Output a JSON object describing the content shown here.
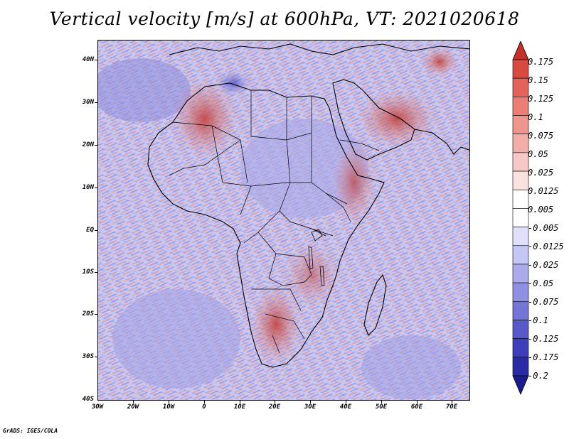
{
  "title": "Vertical velocity [m/s] at 600hPa, VT: 2021020618",
  "variable": "Vertical velocity",
  "units": "m/s",
  "level": "600hPa",
  "valid_time": "2021020618",
  "lat_ticks": [
    "40N",
    "30N",
    "20N",
    "10N",
    "EQ",
    "10S",
    "20S",
    "30S",
    "40S"
  ],
  "lon_ticks": [
    "30W",
    "20W",
    "10W",
    "0",
    "10E",
    "20E",
    "30E",
    "40E",
    "50E",
    "60E",
    "70E"
  ],
  "colorbar": {
    "levels": [
      "0.175",
      "0.15",
      "0.125",
      "0.1",
      "0.075",
      "0.05",
      "0.025",
      "0.0125",
      "0.005",
      "-0.005",
      "-0.0125",
      "-0.025",
      "-0.05",
      "-0.075",
      "-0.1",
      "-0.125",
      "-0.175",
      "-0.2"
    ],
    "colors": [
      "#c4302a",
      "#d8493f",
      "#e2635a",
      "#ea7d74",
      "#ee958e",
      "#f2afaa",
      "#f6c9c6",
      "#fae2e0",
      "#ffffff",
      "#ffffff",
      "#e0e0fa",
      "#c6c6f4",
      "#ababec",
      "#9090e2",
      "#7575d8",
      "#5959cc",
      "#3e3ebd",
      "#2a2aa6",
      "#1b1b8c"
    ]
  },
  "credit": "GrADS: IGES/COLA"
}
